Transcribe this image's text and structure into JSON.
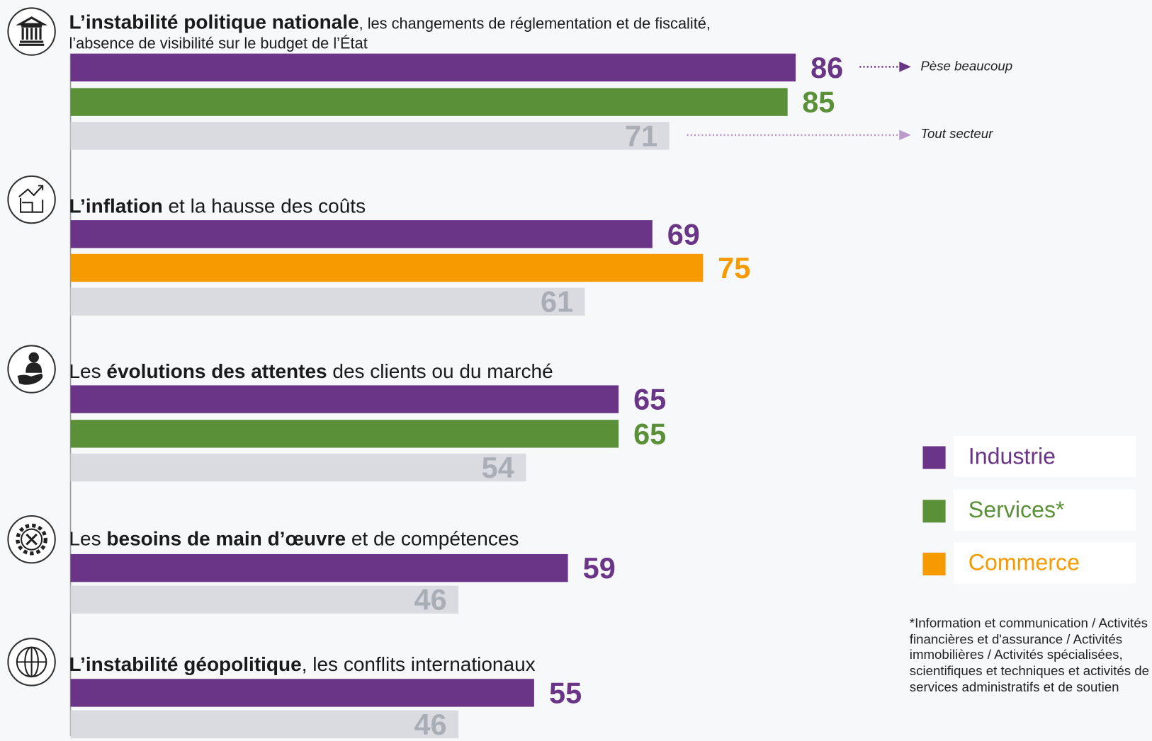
{
  "chart_data": {
    "type": "bar",
    "orientation": "horizontal",
    "xlim": [
      0,
      100
    ],
    "series": [
      {
        "name": "Industrie",
        "color": "#6a3587"
      },
      {
        "name": "Services*",
        "color": "#5a9138"
      },
      {
        "name": "Commerce",
        "color": "#f59a00"
      }
    ],
    "reference_color": "#d9dbe0",
    "reference_label_color": "#a9adb5",
    "groups": [
      {
        "label": [
          {
            "text": "L’instabilité politique nationale",
            "bold": true
          },
          {
            "text": ", les changements de réglementation et de fiscalité, l’absence de visibilité sur le budget de l’État",
            "bold": false
          }
        ],
        "bars": [
          {
            "series": "Industrie",
            "value": 86
          },
          {
            "series": "Services*",
            "value": 85
          },
          {
            "value": 71
          }
        ]
      },
      {
        "label": [
          {
            "text": "L’inflation",
            "bold": true
          },
          {
            "text": " et la hausse des coûts",
            "bold": false
          }
        ],
        "bars": [
          {
            "series": "Industrie",
            "value": 69
          },
          {
            "series": "Commerce",
            "value": 75
          },
          {
            "value": 61
          }
        ]
      },
      {
        "label": [
          {
            "text": "Les ",
            "bold": false
          },
          {
            "text": "évolutions des attentes",
            "bold": true
          },
          {
            "text": " des clients ou du marché",
            "bold": false
          }
        ],
        "bars": [
          {
            "series": "Industrie",
            "value": 65
          },
          {
            "series": "Services*",
            "value": 65
          },
          {
            "value": 54
          }
        ]
      },
      {
        "label": [
          {
            "text": "Les ",
            "bold": false
          },
          {
            "text": "besoins de main d’œuvre",
            "bold": true
          },
          {
            "text": " et de compétences",
            "bold": false
          }
        ],
        "bars": [
          {
            "series": "Industrie",
            "value": 59
          },
          {
            "value": 46
          }
        ]
      },
      {
        "label": [
          {
            "text": "L’instabilité géopolitique",
            "bold": true
          },
          {
            "text": ", les conflits internationaux",
            "bold": false
          }
        ],
        "bars": [
          {
            "series": "Industrie",
            "value": 55
          },
          {
            "value": 46
          }
        ]
      }
    ],
    "annotations": [
      "Pèse beaucoup",
      "Tout secteur"
    ],
    "footnote": "*Information et communication / Activités financières et d'assurance / Activités immobilières / Activités spécialisées, scientifiques et techniques et activités de services administratifs et de soutien"
  }
}
